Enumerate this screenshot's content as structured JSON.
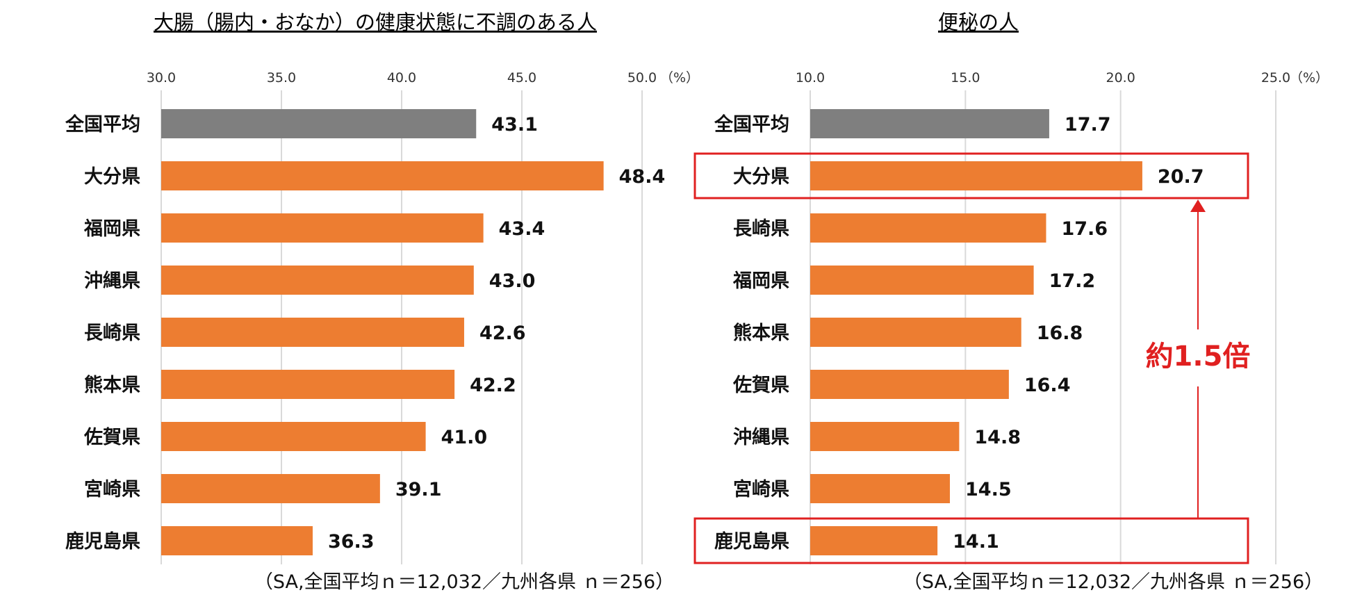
{
  "colors": {
    "national": "#7f7f7f",
    "prefecture": "#ed7d31",
    "highlight": "#e02020",
    "gridline": "#d9d9d9"
  },
  "chart_data": [
    {
      "type": "bar",
      "orientation": "horizontal",
      "title": "大腸（腸内・おなか）の健康状態に不調のある人",
      "unit": "（%）",
      "xlim": [
        30.0,
        50.0
      ],
      "ticks": [
        "30.0",
        "35.0",
        "40.0",
        "45.0",
        "50.0"
      ],
      "tick_values": [
        30,
        35,
        40,
        45,
        50
      ],
      "grid": true,
      "categories": [
        "全国平均",
        "大分県",
        "福岡県",
        "沖縄県",
        "長崎県",
        "熊本県",
        "佐賀県",
        "宮崎県",
        "鹿児島県"
      ],
      "values": [
        43.1,
        48.4,
        43.4,
        43.0,
        42.6,
        42.2,
        41.0,
        39.1,
        36.3
      ],
      "value_labels": [
        "43.1",
        "48.4",
        "43.4",
        "43.0",
        "42.6",
        "42.2",
        "41.0",
        "39.1",
        "36.3"
      ],
      "note": "（SA,全国平均ｎ＝12,032／九州各県 ｎ＝256）"
    },
    {
      "type": "bar",
      "orientation": "horizontal",
      "title": "便秘の人",
      "unit": "（%）",
      "xlim": [
        10.0,
        25.0
      ],
      "ticks": [
        "10.0",
        "15.0",
        "20.0",
        "25.0"
      ],
      "tick_values": [
        10,
        15,
        20,
        25
      ],
      "grid": true,
      "categories": [
        "全国平均",
        "大分県",
        "長崎県",
        "福岡県",
        "熊本県",
        "佐賀県",
        "沖縄県",
        "宮崎県",
        "鹿児島県"
      ],
      "values": [
        17.7,
        20.7,
        17.6,
        17.2,
        16.8,
        16.4,
        14.8,
        14.5,
        14.1
      ],
      "value_labels": [
        "17.7",
        "20.7",
        "17.6",
        "17.2",
        "16.8",
        "16.4",
        "14.8",
        "14.5",
        "14.1"
      ],
      "highlighted": [
        "大分県",
        "鹿児島県"
      ],
      "annotation": "約1.5倍",
      "note": "（SA,全国平均ｎ＝12,032／九州各県 ｎ＝256）"
    }
  ]
}
